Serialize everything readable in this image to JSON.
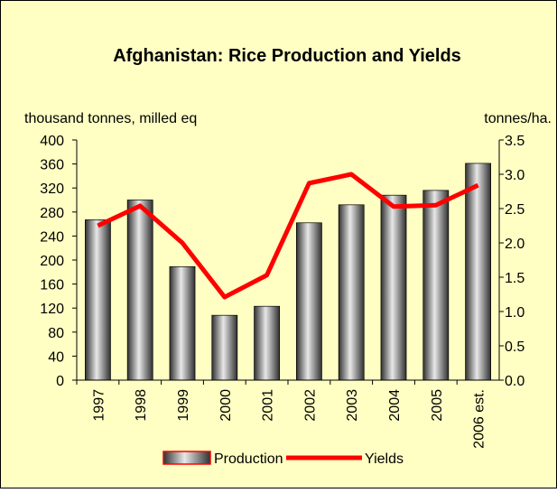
{
  "chart_data": {
    "type": "bar_line",
    "title": "Afghanistan: Rice Production and Yields",
    "ylabel": "thousand tonnes, milled eq",
    "y2label": "tonnes/ha.",
    "categories": [
      "1997",
      "1998",
      "1999",
      "2000",
      "2001",
      "2002",
      "2003",
      "2004",
      "2005",
      "2006 est."
    ],
    "series": [
      {
        "name": "Production",
        "color": "#808080",
        "type": "bar",
        "values": [
          267,
          300,
          189,
          108,
          123,
          262,
          292,
          308,
          316,
          361
        ]
      },
      {
        "name": "Yields",
        "color": "#ff0000",
        "type": "line",
        "axis": "y2",
        "values": [
          2.25,
          2.54,
          2.0,
          1.21,
          1.53,
          2.87,
          3.0,
          2.53,
          2.55,
          2.84
        ]
      }
    ],
    "ylim": [
      0,
      400
    ],
    "yticks": [
      0,
      40,
      80,
      120,
      160,
      200,
      240,
      280,
      320,
      360,
      400
    ],
    "y2lim": [
      0,
      3.5
    ],
    "y2ticks": [
      {
        "value": 0,
        "label": "0.0"
      },
      0.5,
      {
        "value": 1,
        "label": "1.0"
      },
      1.5,
      {
        "value": 2,
        "label": "2.0"
      },
      2.5,
      {
        "value": 3,
        "label": "3.0"
      },
      3.5
    ],
    "grid": false,
    "legend": "bottom"
  }
}
